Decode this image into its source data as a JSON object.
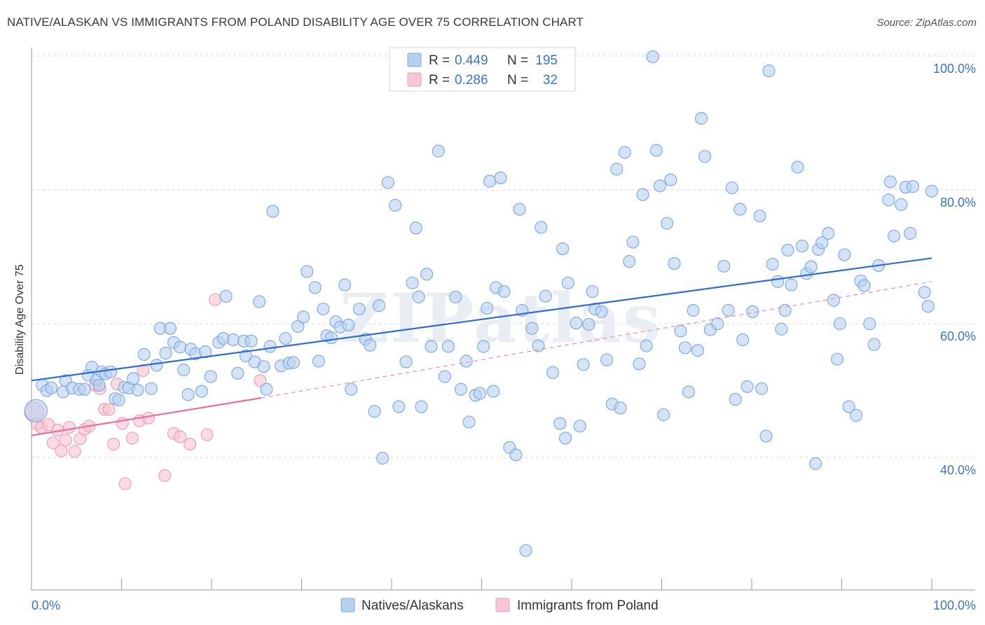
{
  "title": "NATIVE/ALASKAN VS IMMIGRANTS FROM POLAND DISABILITY AGE OVER 75 CORRELATION CHART",
  "source": "Source: ZipAtlas.com",
  "watermark": "ZIPatlas",
  "colors": {
    "blue_fill": "#b8d0f0",
    "blue_stroke": "#7aa6e0",
    "blue_line": "#2f6ccf",
    "pink_fill": "#f8c6d4",
    "pink_stroke": "#ee9ab4",
    "pink_line": "#e8709a",
    "tick_text": "#3a73c8",
    "grid": "#d8d8d8"
  },
  "legend_top": {
    "rows": [
      {
        "r_label": "R =",
        "r_value": "0.449",
        "n_label": "N =",
        "n_value": "195",
        "series": "blue"
      },
      {
        "r_label": "R =",
        "r_value": "0.286",
        "n_label": "N =",
        "n_value": "32",
        "series": "pink"
      }
    ]
  },
  "legend_bottom": {
    "items": [
      {
        "label": "Natives/Alaskans",
        "series": "blue"
      },
      {
        "label": "Immigrants from Poland",
        "series": "pink"
      }
    ]
  },
  "chart_data": {
    "type": "scatter",
    "title": "NATIVE/ALASKAN VS IMMIGRANTS FROM POLAND DISABILITY AGE OVER 75 CORRELATION CHART",
    "xlabel": "",
    "ylabel": "Disability Age Over 75",
    "xlim": [
      0,
      100
    ],
    "ylim": [
      20,
      101
    ],
    "x_tick_labels": [
      "0.0%",
      "100.0%"
    ],
    "y_ticks": [
      40,
      60,
      80,
      100
    ],
    "y_tick_labels": [
      "40.0%",
      "60.0%",
      "80.0%",
      "100.0%"
    ],
    "grid": true,
    "legend_position": "top-center",
    "series": [
      {
        "name": "Natives/Alaskans",
        "color": "blue",
        "r": 0.449,
        "n": 195,
        "trend": {
          "x": [
            0,
            100
          ],
          "y": [
            51.5,
            69.8
          ]
        },
        "points": [
          [
            0.5,
            47
          ],
          [
            1.2,
            50.8
          ],
          [
            1.7,
            50
          ],
          [
            2.2,
            50.4
          ],
          [
            3.5,
            49.8
          ],
          [
            3.8,
            51.5
          ],
          [
            4.5,
            50.4
          ],
          [
            5.3,
            50.2
          ],
          [
            5.9,
            50.2
          ],
          [
            6.3,
            52.3
          ],
          [
            6.7,
            53.5
          ],
          [
            7.2,
            51.6
          ],
          [
            7.5,
            50.8
          ],
          [
            7.8,
            52.8
          ],
          [
            8.2,
            52.5
          ],
          [
            8.8,
            52.8
          ],
          [
            9.3,
            48.8
          ],
          [
            9.7,
            48.6
          ],
          [
            10.3,
            50.5
          ],
          [
            10.8,
            50.4
          ],
          [
            11.3,
            51.8
          ],
          [
            11.8,
            50.1
          ],
          [
            12.5,
            55.4
          ],
          [
            13.3,
            50.3
          ],
          [
            13.9,
            53.8
          ],
          [
            14.3,
            59.3
          ],
          [
            14.9,
            55.6
          ],
          [
            15.4,
            59.3
          ],
          [
            15.8,
            57.2
          ],
          [
            16.5,
            56.5
          ],
          [
            16.9,
            53.1
          ],
          [
            17.4,
            49.4
          ],
          [
            17.7,
            56.2
          ],
          [
            18.2,
            55.5
          ],
          [
            18.9,
            49.9
          ],
          [
            19.3,
            55.8
          ],
          [
            19.9,
            52.1
          ],
          [
            20.8,
            57.2
          ],
          [
            21.3,
            57.8
          ],
          [
            21.6,
            64.1
          ],
          [
            22.4,
            57.6
          ],
          [
            22.9,
            52.6
          ],
          [
            23.6,
            57.4
          ],
          [
            23.8,
            55.2
          ],
          [
            24.4,
            57.4
          ],
          [
            24.8,
            54.3
          ],
          [
            25.3,
            63.3
          ],
          [
            25.8,
            53.6
          ],
          [
            26.1,
            50.2
          ],
          [
            26.5,
            56.6
          ],
          [
            26.8,
            76.8
          ],
          [
            27.7,
            53.7
          ],
          [
            28.2,
            57.8
          ],
          [
            28.6,
            54.1
          ],
          [
            29.1,
            54.2
          ],
          [
            29.6,
            59.6
          ],
          [
            30.2,
            61
          ],
          [
            30.6,
            67.8
          ],
          [
            31.5,
            65.4
          ],
          [
            31.9,
            54.4
          ],
          [
            32.4,
            62.2
          ],
          [
            32.8,
            58.2
          ],
          [
            33.3,
            57.9
          ],
          [
            33.8,
            60.3
          ],
          [
            34.3,
            59.5
          ],
          [
            34.8,
            65.8
          ],
          [
            35.2,
            59.8
          ],
          [
            35.5,
            50.2
          ],
          [
            36.4,
            62.2
          ],
          [
            37.1,
            57.7
          ],
          [
            37.6,
            56.8
          ],
          [
            38.1,
            46.9
          ],
          [
            38.6,
            62.7
          ],
          [
            39,
            39.9
          ],
          [
            39.6,
            81.1
          ],
          [
            40.4,
            77.7
          ],
          [
            40.8,
            47.6
          ],
          [
            41.6,
            54.3
          ],
          [
            42.3,
            66.1
          ],
          [
            42.7,
            74.3
          ],
          [
            43,
            64
          ],
          [
            43.3,
            47.6
          ],
          [
            43.9,
            67.4
          ],
          [
            44.4,
            56.6
          ],
          [
            45.2,
            85.8
          ],
          [
            45.9,
            52.1
          ],
          [
            46.3,
            56.6
          ],
          [
            47.1,
            64
          ],
          [
            47.7,
            50.2
          ],
          [
            48.3,
            54.4
          ],
          [
            48.6,
            45.3
          ],
          [
            49.3,
            49.3
          ],
          [
            49.8,
            49.6
          ],
          [
            50.2,
            56.6
          ],
          [
            50.6,
            62.3
          ],
          [
            50.9,
            81.3
          ],
          [
            51.3,
            49.9
          ],
          [
            51.6,
            65.4
          ],
          [
            52.1,
            81.8
          ],
          [
            52.5,
            64.8
          ],
          [
            53.1,
            41.5
          ],
          [
            53.8,
            40.4
          ],
          [
            54.2,
            77.1
          ],
          [
            54.5,
            62
          ],
          [
            54.9,
            26.1
          ],
          [
            55.6,
            59.3
          ],
          [
            56.3,
            56.7
          ],
          [
            56.6,
            74.4
          ],
          [
            57.1,
            64.1
          ],
          [
            57.9,
            52.7
          ],
          [
            58.7,
            45.1
          ],
          [
            59,
            71.2
          ],
          [
            59.3,
            42.9
          ],
          [
            59.6,
            66.1
          ],
          [
            60.5,
            60.1
          ],
          [
            60.9,
            44.7
          ],
          [
            61.3,
            53.9
          ],
          [
            61.9,
            59.9
          ],
          [
            62.3,
            64.8
          ],
          [
            62.6,
            62.2
          ],
          [
            63.3,
            61.8
          ],
          [
            63.9,
            54.6
          ],
          [
            64.5,
            48
          ],
          [
            65,
            83.1
          ],
          [
            65.4,
            47.4
          ],
          [
            65.9,
            85.6
          ],
          [
            66.4,
            69.3
          ],
          [
            66.8,
            72.2
          ],
          [
            67.5,
            54
          ],
          [
            67.9,
            79.3
          ],
          [
            68.3,
            56.7
          ],
          [
            69,
            99.9
          ],
          [
            69.4,
            85.9
          ],
          [
            69.8,
            80.6
          ],
          [
            70.2,
            46.4
          ],
          [
            70.6,
            75
          ],
          [
            71,
            81.5
          ],
          [
            71.4,
            69
          ],
          [
            72.1,
            58.9
          ],
          [
            72.6,
            56.4
          ],
          [
            73,
            49.8
          ],
          [
            73.5,
            62
          ],
          [
            74,
            56
          ],
          [
            74.4,
            90.7
          ],
          [
            74.8,
            85
          ],
          [
            75.4,
            59.1
          ],
          [
            76.2,
            60
          ],
          [
            76.9,
            68.6
          ],
          [
            77.4,
            62
          ],
          [
            77.8,
            80.3
          ],
          [
            78.2,
            48.7
          ],
          [
            78.7,
            77.1
          ],
          [
            79,
            57.6
          ],
          [
            79.5,
            50.6
          ],
          [
            80.1,
            61.8
          ],
          [
            80.9,
            76.1
          ],
          [
            81.1,
            50.3
          ],
          [
            81.6,
            43.2
          ],
          [
            81.9,
            97.8
          ],
          [
            82.3,
            68.9
          ],
          [
            82.9,
            66.3
          ],
          [
            83.3,
            59.2
          ],
          [
            83.7,
            62
          ],
          [
            84,
            71
          ],
          [
            84.4,
            65.8
          ],
          [
            85.1,
            83.4
          ],
          [
            85.6,
            71.6
          ],
          [
            86.1,
            67.5
          ],
          [
            86.6,
            68.5
          ],
          [
            87.1,
            39.1
          ],
          [
            87.4,
            71.1
          ],
          [
            87.8,
            72.1
          ],
          [
            88.5,
            73.5
          ],
          [
            89.1,
            63.5
          ],
          [
            89.5,
            54.7
          ],
          [
            89.8,
            60
          ],
          [
            90.3,
            70.3
          ],
          [
            90.8,
            47.6
          ],
          [
            91.6,
            46.3
          ],
          [
            92.1,
            66.4
          ],
          [
            92.5,
            65.7
          ],
          [
            93.1,
            60
          ],
          [
            93.6,
            56.9
          ],
          [
            94.1,
            68.7
          ],
          [
            95.2,
            78.5
          ],
          [
            95.4,
            81.2
          ],
          [
            95.8,
            73.1
          ],
          [
            96.6,
            77.8
          ],
          [
            97.1,
            80.4
          ],
          [
            97.6,
            73.5
          ],
          [
            97.9,
            80.5
          ],
          [
            99.2,
            64.7
          ],
          [
            99.6,
            62.6
          ],
          [
            100,
            79.8
          ]
        ]
      },
      {
        "name": "Immigrants from Poland",
        "color": "pink",
        "r": 0.286,
        "n": 32,
        "trend": {
          "x": [
            0,
            25.5
          ],
          "y": [
            43.3,
            48.9
          ],
          "dashed_extension": {
            "x": [
              25.5,
              100
            ],
            "y": [
              48.9,
              66.3
            ]
          }
        },
        "points": [
          [
            0.3,
            46.8
          ],
          [
            0.6,
            45
          ],
          [
            1.1,
            44.5
          ],
          [
            1.9,
            44.9
          ],
          [
            2.4,
            42.2
          ],
          [
            2.9,
            44.1
          ],
          [
            3.3,
            41
          ],
          [
            3.8,
            42.6
          ],
          [
            4.2,
            44.5
          ],
          [
            4.8,
            40.9
          ],
          [
            5.4,
            42.8
          ],
          [
            5.9,
            44.2
          ],
          [
            6.4,
            44.7
          ],
          [
            7.1,
            50.8
          ],
          [
            7.6,
            50.3
          ],
          [
            8.1,
            47.2
          ],
          [
            8.6,
            47.2
          ],
          [
            9.1,
            42
          ],
          [
            9.5,
            51
          ],
          [
            10.1,
            45.1
          ],
          [
            10.4,
            36.1
          ],
          [
            11.2,
            42.9
          ],
          [
            12,
            45.5
          ],
          [
            12.4,
            53
          ],
          [
            13,
            45.9
          ],
          [
            14.8,
            37.3
          ],
          [
            15.8,
            43.6
          ],
          [
            16.5,
            43.1
          ],
          [
            17.6,
            42
          ],
          [
            19.5,
            43.4
          ],
          [
            20.4,
            63.6
          ],
          [
            25.4,
            51.5
          ]
        ]
      }
    ]
  }
}
